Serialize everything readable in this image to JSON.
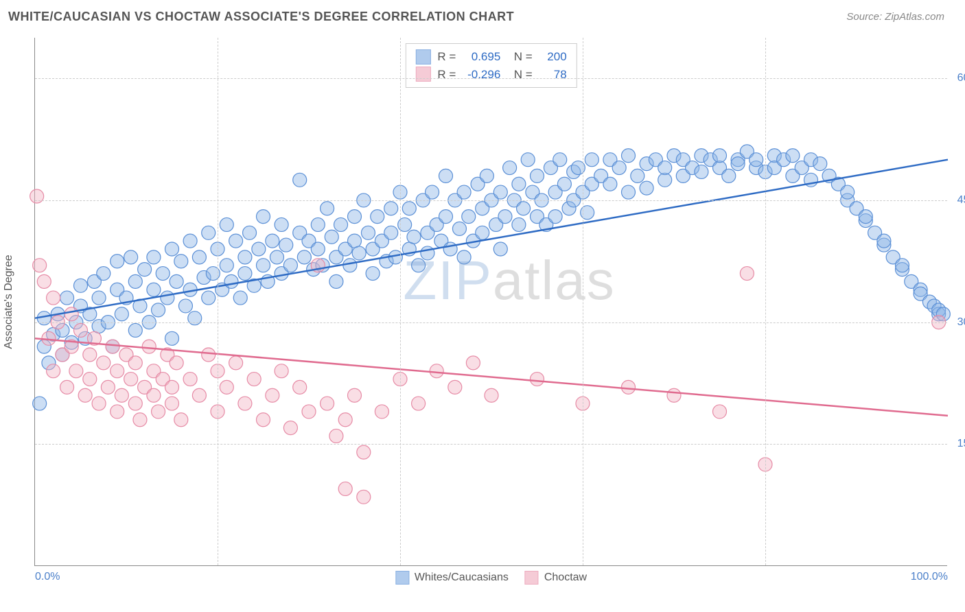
{
  "header": {
    "title": "WHITE/CAUCASIAN VS CHOCTAW ASSOCIATE'S DEGREE CORRELATION CHART",
    "source_prefix": "Source: ",
    "source_name": "ZipAtlas.com"
  },
  "chart": {
    "type": "scatter",
    "y_axis_label": "Associate's Degree",
    "xlim": [
      0,
      100
    ],
    "ylim": [
      0,
      65
    ],
    "x_ticks": [
      0,
      20,
      40,
      60,
      80,
      100
    ],
    "x_tick_labels": {
      "0": "0.0%",
      "100": "100.0%"
    },
    "y_ticks": [
      15,
      30,
      45,
      60
    ],
    "y_tick_labels": {
      "15": "15.0%",
      "30": "30.0%",
      "45": "45.0%",
      "60": "60.0%"
    },
    "background_color": "#ffffff",
    "grid_color": "#cccccc",
    "axis_color": "#888888",
    "tick_label_color": "#4a7fc9",
    "marker_radius": 10,
    "marker_opacity": 0.45,
    "line_width": 2.5,
    "watermark": {
      "z": "ZIP",
      "rest": "atlas"
    },
    "series": [
      {
        "name": "Whites/Caucasians",
        "color_fill": "#8fb6e6",
        "color_stroke": "#5a8fd6",
        "line_color": "#2e6bc4",
        "R": "0.695",
        "N": "200",
        "regression": {
          "x1": 0,
          "y1": 30.5,
          "x2": 100,
          "y2": 50
        },
        "points": [
          [
            0.5,
            20
          ],
          [
            1,
            27
          ],
          [
            1,
            30.5
          ],
          [
            1.5,
            25
          ],
          [
            2,
            28.5
          ],
          [
            2.5,
            31
          ],
          [
            3,
            26
          ],
          [
            3,
            29
          ],
          [
            3.5,
            33
          ],
          [
            4,
            27.5
          ],
          [
            4.5,
            30
          ],
          [
            5,
            32
          ],
          [
            5,
            34.5
          ],
          [
            5.5,
            28
          ],
          [
            6,
            31
          ],
          [
            6.5,
            35
          ],
          [
            7,
            29.5
          ],
          [
            7,
            33
          ],
          [
            7.5,
            36
          ],
          [
            8,
            30
          ],
          [
            8.5,
            27
          ],
          [
            9,
            34
          ],
          [
            9,
            37.5
          ],
          [
            9.5,
            31
          ],
          [
            10,
            33
          ],
          [
            10.5,
            38
          ],
          [
            11,
            29
          ],
          [
            11,
            35
          ],
          [
            11.5,
            32
          ],
          [
            12,
            36.5
          ],
          [
            12.5,
            30
          ],
          [
            13,
            34
          ],
          [
            13,
            38
          ],
          [
            13.5,
            31.5
          ],
          [
            14,
            36
          ],
          [
            14.5,
            33
          ],
          [
            15,
            39
          ],
          [
            15,
            28
          ],
          [
            15.5,
            35
          ],
          [
            16,
            37.5
          ],
          [
            16.5,
            32
          ],
          [
            17,
            40
          ],
          [
            17,
            34
          ],
          [
            17.5,
            30.5
          ],
          [
            18,
            38
          ],
          [
            18.5,
            35.5
          ],
          [
            19,
            33
          ],
          [
            19,
            41
          ],
          [
            19.5,
            36
          ],
          [
            20,
            39
          ],
          [
            20.5,
            34
          ],
          [
            21,
            37
          ],
          [
            21,
            42
          ],
          [
            21.5,
            35
          ],
          [
            22,
            40
          ],
          [
            22.5,
            33
          ],
          [
            23,
            38
          ],
          [
            23,
            36
          ],
          [
            23.5,
            41
          ],
          [
            24,
            34.5
          ],
          [
            24.5,
            39
          ],
          [
            25,
            37
          ],
          [
            25,
            43
          ],
          [
            25.5,
            35
          ],
          [
            26,
            40
          ],
          [
            26.5,
            38
          ],
          [
            27,
            36
          ],
          [
            27,
            42
          ],
          [
            27.5,
            39.5
          ],
          [
            28,
            37
          ],
          [
            29,
            47.5
          ],
          [
            29,
            41
          ],
          [
            29.5,
            38
          ],
          [
            30,
            40
          ],
          [
            30.5,
            36.5
          ],
          [
            31,
            42
          ],
          [
            31,
            39
          ],
          [
            31.5,
            37
          ],
          [
            32,
            44
          ],
          [
            32.5,
            40.5
          ],
          [
            33,
            38
          ],
          [
            33,
            35
          ],
          [
            33.5,
            42
          ],
          [
            34,
            39
          ],
          [
            34.5,
            37
          ],
          [
            35,
            43
          ],
          [
            35,
            40
          ],
          [
            35.5,
            38.5
          ],
          [
            36,
            45
          ],
          [
            36.5,
            41
          ],
          [
            37,
            39
          ],
          [
            37,
            36
          ],
          [
            37.5,
            43
          ],
          [
            38,
            40
          ],
          [
            38.5,
            37.5
          ],
          [
            39,
            44
          ],
          [
            39,
            41
          ],
          [
            39.5,
            38
          ],
          [
            40,
            46
          ],
          [
            40.5,
            42
          ],
          [
            41,
            39
          ],
          [
            41,
            44
          ],
          [
            41.5,
            40.5
          ],
          [
            42,
            37
          ],
          [
            42.5,
            45
          ],
          [
            43,
            41
          ],
          [
            43,
            38.5
          ],
          [
            43.5,
            46
          ],
          [
            44,
            42
          ],
          [
            44.5,
            40
          ],
          [
            45,
            48
          ],
          [
            45,
            43
          ],
          [
            45.5,
            39
          ],
          [
            46,
            45
          ],
          [
            46.5,
            41.5
          ],
          [
            47,
            38
          ],
          [
            47,
            46
          ],
          [
            47.5,
            43
          ],
          [
            48,
            40
          ],
          [
            48.5,
            47
          ],
          [
            49,
            44
          ],
          [
            49,
            41
          ],
          [
            49.5,
            48
          ],
          [
            50,
            45
          ],
          [
            50.5,
            42
          ],
          [
            51,
            39
          ],
          [
            51,
            46
          ],
          [
            51.5,
            43
          ],
          [
            52,
            49
          ],
          [
            52.5,
            45
          ],
          [
            53,
            42
          ],
          [
            53,
            47
          ],
          [
            53.5,
            44
          ],
          [
            54,
            50
          ],
          [
            54.5,
            46
          ],
          [
            55,
            43
          ],
          [
            55,
            48
          ],
          [
            55.5,
            45
          ],
          [
            56,
            42
          ],
          [
            56.5,
            49
          ],
          [
            57,
            46
          ],
          [
            57,
            43
          ],
          [
            57.5,
            50
          ],
          [
            58,
            47
          ],
          [
            58.5,
            44
          ],
          [
            59,
            48.5
          ],
          [
            59,
            45
          ],
          [
            59.5,
            49
          ],
          [
            60,
            46
          ],
          [
            60.5,
            43.5
          ],
          [
            61,
            50
          ],
          [
            61,
            47
          ],
          [
            62,
            48
          ],
          [
            63,
            50
          ],
          [
            63,
            47
          ],
          [
            64,
            49
          ],
          [
            65,
            46
          ],
          [
            65,
            50.5
          ],
          [
            66,
            48
          ],
          [
            67,
            49.5
          ],
          [
            67,
            46.5
          ],
          [
            68,
            50
          ],
          [
            69,
            47.5
          ],
          [
            69,
            49
          ],
          [
            70,
            50.5
          ],
          [
            71,
            48
          ],
          [
            71,
            50
          ],
          [
            72,
            49
          ],
          [
            73,
            50.5
          ],
          [
            73,
            48.5
          ],
          [
            74,
            50
          ],
          [
            75,
            49
          ],
          [
            75,
            50.5
          ],
          [
            76,
            48
          ],
          [
            77,
            50
          ],
          [
            77,
            49.5
          ],
          [
            78,
            51
          ],
          [
            79,
            49
          ],
          [
            79,
            50
          ],
          [
            80,
            48.5
          ],
          [
            81,
            50.5
          ],
          [
            81,
            49
          ],
          [
            82,
            50
          ],
          [
            83,
            48
          ],
          [
            83,
            50.5
          ],
          [
            84,
            49
          ],
          [
            85,
            50
          ],
          [
            85,
            47.5
          ],
          [
            86,
            49.5
          ],
          [
            87,
            48
          ],
          [
            88,
            47
          ],
          [
            89,
            45
          ],
          [
            89,
            46
          ],
          [
            90,
            44
          ],
          [
            91,
            42.5
          ],
          [
            91,
            43
          ],
          [
            92,
            41
          ],
          [
            93,
            39.5
          ],
          [
            93,
            40
          ],
          [
            94,
            38
          ],
          [
            95,
            36.5
          ],
          [
            95,
            37
          ],
          [
            96,
            35
          ],
          [
            97,
            34
          ],
          [
            97,
            33.5
          ],
          [
            98,
            32.5
          ],
          [
            98.5,
            32
          ],
          [
            99,
            31
          ],
          [
            99,
            31.5
          ],
          [
            99.5,
            31
          ]
        ]
      },
      {
        "name": "Choctaw",
        "color_fill": "#f2b6c6",
        "color_stroke": "#e68aa5",
        "line_color": "#e06b8f",
        "R": "-0.296",
        "N": "78",
        "regression": {
          "x1": 0,
          "y1": 28,
          "x2": 100,
          "y2": 18.5
        },
        "points": [
          [
            0.2,
            45.5
          ],
          [
            0.5,
            37
          ],
          [
            1,
            35
          ],
          [
            1.5,
            28
          ],
          [
            2,
            33
          ],
          [
            2,
            24
          ],
          [
            2.5,
            30
          ],
          [
            3,
            26
          ],
          [
            3.5,
            22
          ],
          [
            4,
            31
          ],
          [
            4,
            27
          ],
          [
            4.5,
            24
          ],
          [
            5,
            29
          ],
          [
            5.5,
            21
          ],
          [
            6,
            26
          ],
          [
            6,
            23
          ],
          [
            6.5,
            28
          ],
          [
            7,
            20
          ],
          [
            7.5,
            25
          ],
          [
            8,
            22
          ],
          [
            8.5,
            27
          ],
          [
            9,
            19
          ],
          [
            9,
            24
          ],
          [
            9.5,
            21
          ],
          [
            10,
            26
          ],
          [
            10.5,
            23
          ],
          [
            11,
            20
          ],
          [
            11,
            25
          ],
          [
            11.5,
            18
          ],
          [
            12,
            22
          ],
          [
            12.5,
            27
          ],
          [
            13,
            21
          ],
          [
            13,
            24
          ],
          [
            13.5,
            19
          ],
          [
            14,
            23
          ],
          [
            14.5,
            26
          ],
          [
            15,
            20
          ],
          [
            15,
            22
          ],
          [
            15.5,
            25
          ],
          [
            16,
            18
          ],
          [
            17,
            23
          ],
          [
            18,
            21
          ],
          [
            19,
            26
          ],
          [
            20,
            19
          ],
          [
            20,
            24
          ],
          [
            21,
            22
          ],
          [
            22,
            25
          ],
          [
            23,
            20
          ],
          [
            24,
            23
          ],
          [
            25,
            18
          ],
          [
            26,
            21
          ],
          [
            27,
            24
          ],
          [
            28,
            17
          ],
          [
            29,
            22
          ],
          [
            30,
            19
          ],
          [
            31,
            37
          ],
          [
            32,
            20
          ],
          [
            33,
            16
          ],
          [
            34,
            18
          ],
          [
            34,
            9.5
          ],
          [
            35,
            21
          ],
          [
            36,
            14
          ],
          [
            36,
            8.5
          ],
          [
            38,
            19
          ],
          [
            40,
            23
          ],
          [
            42,
            20
          ],
          [
            44,
            24
          ],
          [
            46,
            22
          ],
          [
            48,
            25
          ],
          [
            50,
            21
          ],
          [
            55,
            23
          ],
          [
            60,
            20
          ],
          [
            65,
            22
          ],
          [
            70,
            21
          ],
          [
            75,
            19
          ],
          [
            78,
            36
          ],
          [
            80,
            12.5
          ],
          [
            99,
            30
          ]
        ]
      }
    ],
    "bottom_legend": [
      {
        "label": "Whites/Caucasians",
        "fill": "#8fb6e6",
        "stroke": "#5a8fd6"
      },
      {
        "label": "Choctaw",
        "fill": "#f2b6c6",
        "stroke": "#e68aa5"
      }
    ]
  }
}
